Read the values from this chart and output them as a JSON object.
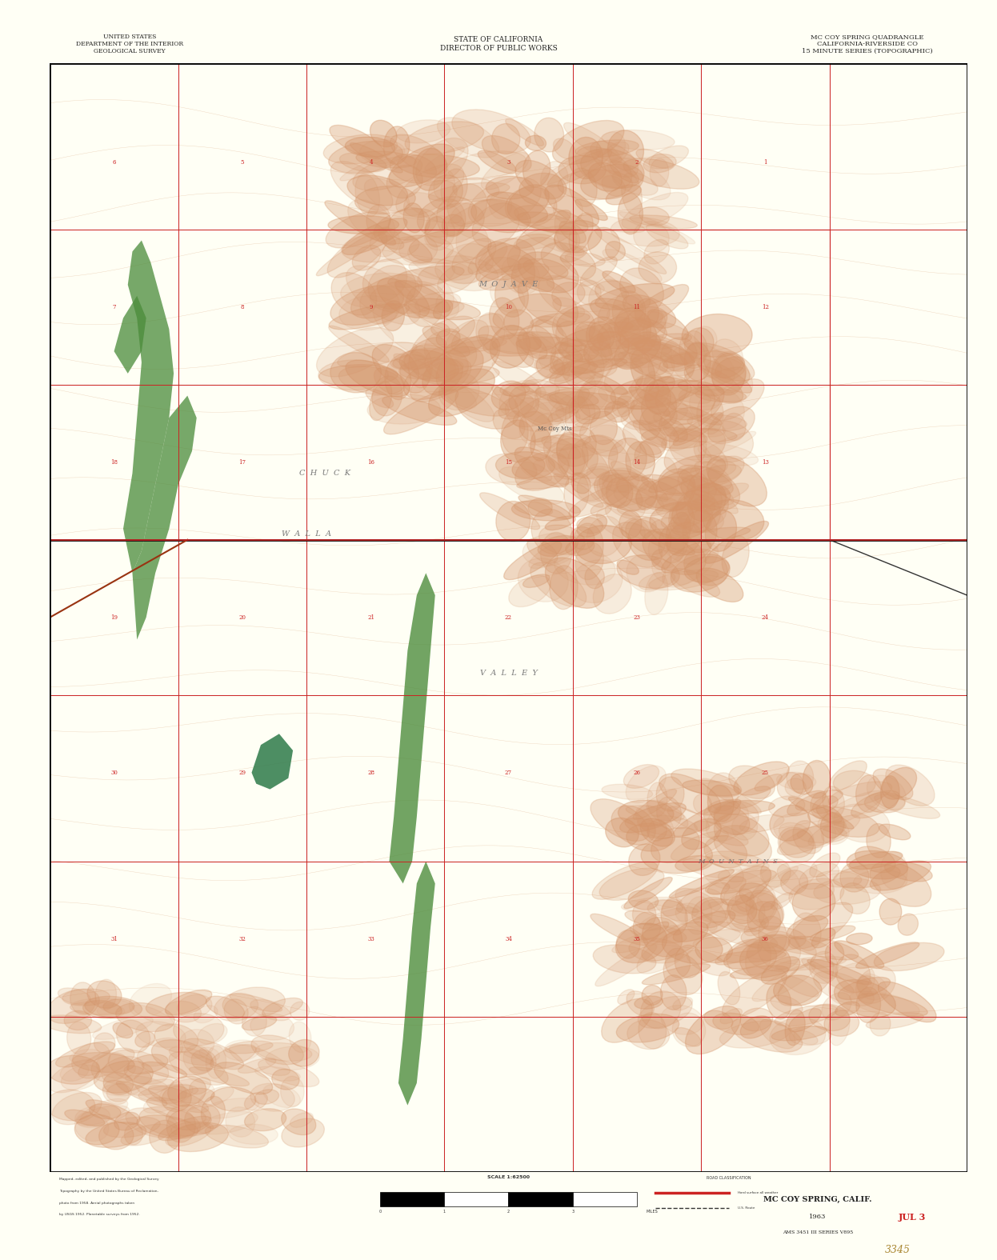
{
  "figure_width": 12.46,
  "figure_height": 15.75,
  "dpi": 100,
  "bg_color": "#FFFFF5",
  "map_bg_color": "#FFFFF5",
  "title_left": "UNITED STATES\nDEPARTMENT OF THE INTERIOR\nGEOLOGICAL SURVEY",
  "title_center": "STATE OF CALIFORNIA\nDIRECTOR OF PUBLIC WORKS",
  "title_right": "MC COY SPRING QUADRANGLE\nCALIFORNIA-RIVERSIDE CO\n15 MINUTE SERIES (TOPOGRAPHIC)",
  "bottom_center_title": "MC COY SPRING, CALIF.",
  "bottom_year": "1963",
  "bottom_series": "AMS 3451 III SERIES V895",
  "bottom_stamp": "JUL 3",
  "bottom_number": "3345",
  "map_border_color": "#000000",
  "grid_color_red": "#CC2222",
  "grid_color_black": "#333333",
  "topo_color": "#D4956A",
  "vegetation_color": "#4A8B3A",
  "water_color": "#4444AA",
  "road_color": "#CC2222"
}
